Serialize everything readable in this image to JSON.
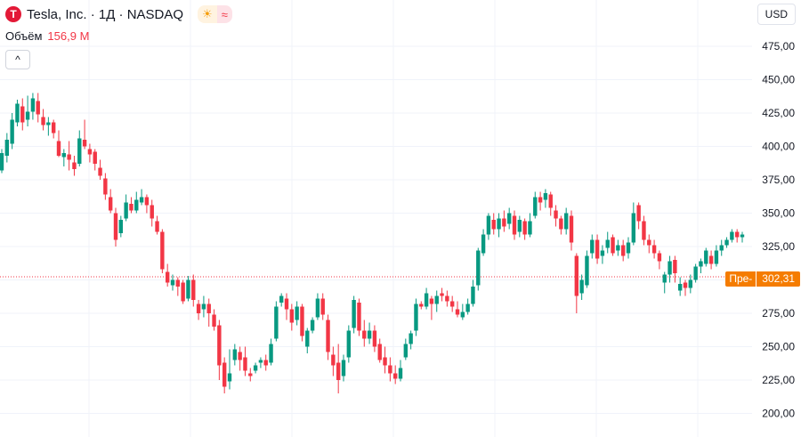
{
  "header": {
    "logo_glyph": "T",
    "title": "Tesla, Inc. · 1Д · NASDAQ",
    "session_icon": "☀",
    "market_icon": "≈"
  },
  "volume": {
    "label": "Объём",
    "value": "156,9 M"
  },
  "collapse_icon": "^",
  "currency": "USD",
  "price_tag": {
    "label": "Пре-",
    "value": "302,31"
  },
  "colors": {
    "up": "#089981",
    "down": "#f23645",
    "prepost": "#f57c00",
    "grid": "#f0f3fa"
  },
  "chart_data": {
    "type": "candlestick",
    "ylim": [
      190,
      490
    ],
    "y_ticks": [
      "475,00",
      "450,00",
      "425,00",
      "400,00",
      "375,00",
      "350,00",
      "325,00",
      "300,00",
      "275,00",
      "250,00",
      "225,00",
      "200,00"
    ],
    "y_tick_values": [
      475,
      450,
      425,
      400,
      375,
      350,
      325,
      300,
      275,
      250,
      225,
      200
    ],
    "last_price": 302.31,
    "candles": [
      [
        382,
        395,
        380,
        398
      ],
      [
        393,
        405,
        388,
        410
      ],
      [
        402,
        420,
        398,
        425
      ],
      [
        418,
        432,
        415,
        435
      ],
      [
        430,
        418,
        412,
        436
      ],
      [
        420,
        426,
        415,
        438
      ],
      [
        426,
        436,
        420,
        440
      ],
      [
        434,
        424,
        418,
        440
      ],
      [
        422,
        416,
        412,
        428
      ],
      [
        416,
        418,
        408,
        422
      ],
      [
        418,
        410,
        406,
        420
      ],
      [
        404,
        393,
        392,
        412
      ],
      [
        392,
        395,
        385,
        398
      ],
      [
        394,
        390,
        382,
        404
      ],
      [
        388,
        383,
        378,
        393
      ],
      [
        387,
        406,
        385,
        412
      ],
      [
        405,
        400,
        398,
        420
      ],
      [
        398,
        394,
        388,
        402
      ],
      [
        396,
        387,
        382,
        398
      ],
      [
        384,
        378,
        375,
        390
      ],
      [
        376,
        364,
        360,
        380
      ],
      [
        362,
        352,
        350,
        368
      ],
      [
        350,
        330,
        325,
        354
      ],
      [
        335,
        345,
        332,
        348
      ],
      [
        346,
        358,
        344,
        364
      ],
      [
        357,
        352,
        350,
        362
      ],
      [
        352,
        360,
        350,
        366
      ],
      [
        358,
        362,
        356,
        368
      ],
      [
        362,
        356,
        350,
        364
      ],
      [
        356,
        346,
        340,
        360
      ],
      [
        344,
        336,
        334,
        348
      ],
      [
        336,
        308,
        305,
        338
      ],
      [
        306,
        298,
        295,
        312
      ],
      [
        296,
        300,
        292,
        304
      ],
      [
        300,
        295,
        288,
        302
      ],
      [
        298,
        284,
        282,
        300
      ],
      [
        286,
        300,
        284,
        303
      ],
      [
        300,
        285,
        280,
        304
      ],
      [
        282,
        275,
        270,
        285
      ],
      [
        278,
        282,
        272,
        288
      ],
      [
        282,
        275,
        265,
        286
      ],
      [
        274,
        265,
        262,
        278
      ],
      [
        266,
        236,
        225,
        270
      ],
      [
        238,
        220,
        215,
        242
      ],
      [
        224,
        230,
        218,
        248
      ],
      [
        240,
        248,
        236,
        252
      ],
      [
        246,
        240,
        232,
        250
      ],
      [
        242,
        232,
        228,
        250
      ],
      [
        230,
        228,
        224,
        234
      ],
      [
        232,
        236,
        230,
        238
      ],
      [
        238,
        240,
        234,
        242
      ],
      [
        240,
        236,
        232,
        244
      ],
      [
        238,
        252,
        236,
        256
      ],
      [
        256,
        280,
        254,
        284
      ],
      [
        283,
        288,
        280,
        290
      ],
      [
        286,
        278,
        270,
        290
      ],
      [
        278,
        268,
        262,
        282
      ],
      [
        270,
        280,
        266,
        284
      ],
      [
        280,
        258,
        254,
        282
      ],
      [
        250,
        262,
        245,
        264
      ],
      [
        262,
        270,
        260,
        272
      ],
      [
        272,
        286,
        270,
        290
      ],
      [
        286,
        274,
        270,
        290
      ],
      [
        270,
        246,
        240,
        274
      ],
      [
        244,
        236,
        228,
        250
      ],
      [
        238,
        225,
        215,
        252
      ],
      [
        228,
        240,
        224,
        244
      ],
      [
        242,
        262,
        238,
        266
      ],
      [
        264,
        285,
        260,
        288
      ],
      [
        283,
        262,
        258,
        286
      ],
      [
        262,
        256,
        250,
        270
      ],
      [
        256,
        262,
        252,
        268
      ],
      [
        262,
        250,
        246,
        266
      ],
      [
        252,
        240,
        238,
        256
      ],
      [
        242,
        236,
        230,
        250
      ],
      [
        236,
        230,
        224,
        242
      ],
      [
        230,
        226,
        222,
        236
      ],
      [
        226,
        234,
        224,
        240
      ],
      [
        242,
        252,
        240,
        256
      ],
      [
        252,
        260,
        248,
        262
      ],
      [
        262,
        282,
        258,
        286
      ],
      [
        282,
        280,
        278,
        284
      ],
      [
        280,
        290,
        278,
        294
      ],
      [
        286,
        282,
        270,
        288
      ],
      [
        282,
        288,
        276,
        292
      ],
      [
        290,
        288,
        284,
        294
      ],
      [
        288,
        284,
        280,
        292
      ],
      [
        284,
        280,
        276,
        288
      ],
      [
        278,
        274,
        272,
        284
      ],
      [
        272,
        276,
        270,
        282
      ],
      [
        276,
        282,
        274,
        286
      ],
      [
        282,
        295,
        280,
        300
      ],
      [
        296,
        322,
        292,
        324
      ],
      [
        320,
        334,
        318,
        338
      ],
      [
        334,
        348,
        330,
        350
      ],
      [
        345,
        338,
        334,
        350
      ],
      [
        338,
        346,
        332,
        350
      ],
      [
        346,
        340,
        336,
        352
      ],
      [
        342,
        350,
        338,
        354
      ],
      [
        348,
        334,
        330,
        352
      ],
      [
        336,
        345,
        332,
        348
      ],
      [
        344,
        334,
        330,
        346
      ],
      [
        334,
        344,
        332,
        350
      ],
      [
        348,
        362,
        346,
        366
      ],
      [
        362,
        358,
        352,
        366
      ],
      [
        360,
        365,
        354,
        368
      ],
      [
        364,
        354,
        348,
        366
      ],
      [
        352,
        346,
        340,
        356
      ],
      [
        346,
        338,
        334,
        348
      ],
      [
        338,
        350,
        334,
        354
      ],
      [
        348,
        328,
        322,
        352
      ],
      [
        318,
        288,
        275,
        320
      ],
      [
        290,
        300,
        285,
        304
      ],
      [
        296,
        318,
        294,
        322
      ],
      [
        320,
        330,
        316,
        334
      ],
      [
        330,
        316,
        312,
        334
      ],
      [
        318,
        322,
        312,
        326
      ],
      [
        324,
        330,
        320,
        336
      ],
      [
        332,
        320,
        318,
        334
      ],
      [
        322,
        326,
        318,
        330
      ],
      [
        326,
        318,
        314,
        330
      ],
      [
        320,
        328,
        316,
        332
      ],
      [
        328,
        350,
        326,
        358
      ],
      [
        356,
        344,
        338,
        358
      ],
      [
        344,
        330,
        326,
        348
      ],
      [
        330,
        326,
        320,
        334
      ],
      [
        326,
        320,
        316,
        330
      ],
      [
        320,
        314,
        308,
        322
      ],
      [
        298,
        304,
        290,
        306
      ],
      [
        304,
        314,
        298,
        318
      ],
      [
        315,
        305,
        298,
        318
      ],
      [
        292,
        297,
        288,
        302
      ],
      [
        298,
        294,
        288,
        300
      ],
      [
        294,
        300,
        290,
        304
      ],
      [
        300,
        310,
        298,
        312
      ],
      [
        310,
        314,
        305,
        316
      ],
      [
        312,
        322,
        310,
        324
      ],
      [
        318,
        312,
        308,
        322
      ],
      [
        312,
        322,
        310,
        326
      ],
      [
        322,
        326,
        318,
        330
      ],
      [
        326,
        330,
        324,
        332
      ],
      [
        330,
        336,
        328,
        338
      ],
      [
        336,
        332,
        328,
        338
      ],
      [
        332,
        334,
        328,
        336
      ]
    ]
  }
}
